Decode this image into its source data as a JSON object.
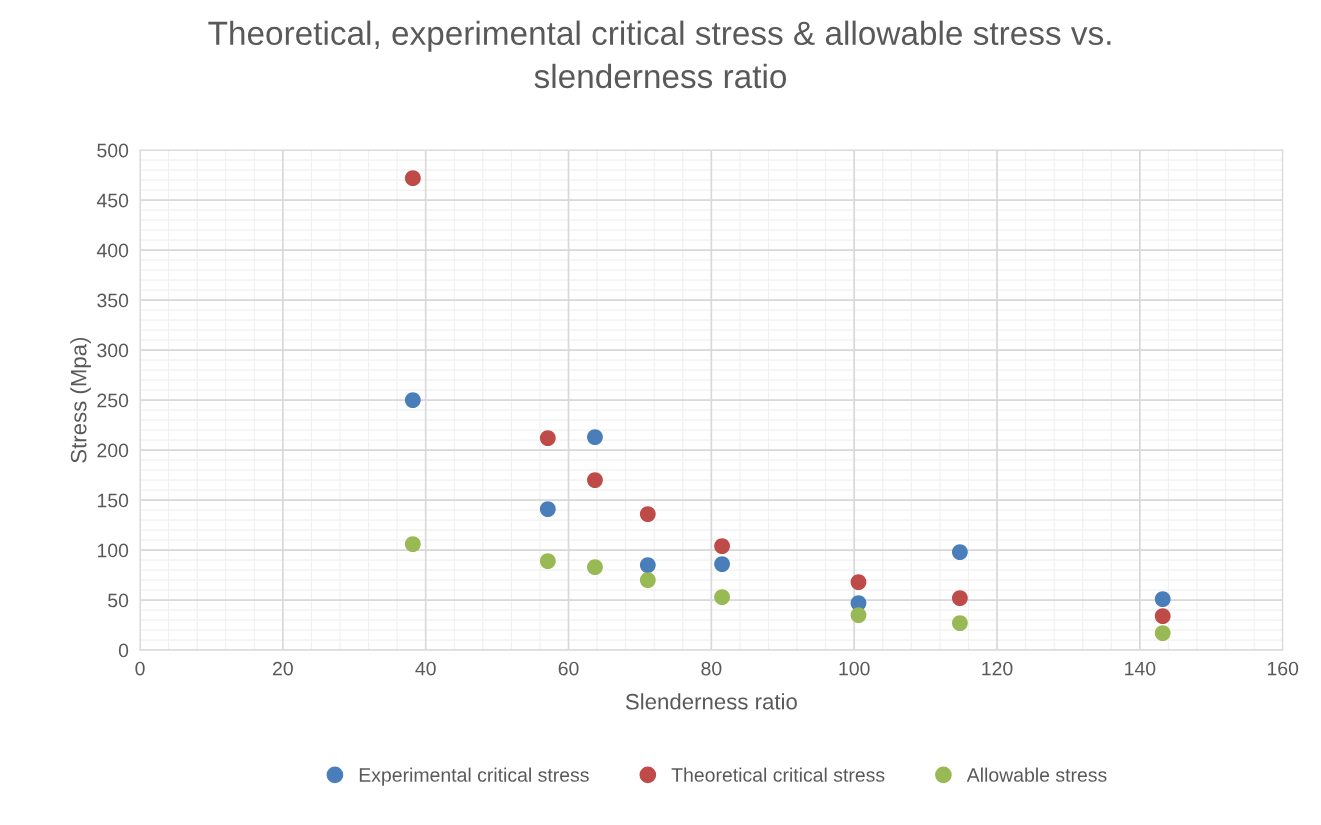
{
  "chart_data": {
    "type": "scatter",
    "title": "Theoretical, experimental critical stress & allowable stress vs.\nslenderness ratio",
    "xlabel": "Slenderness ratio",
    "ylabel": "Stress (Mpa)",
    "x": [
      38.2,
      57.1,
      63.7,
      71.1,
      81.5,
      100.6,
      114.8,
      143.2
    ],
    "series": [
      {
        "name": "Experimental critical stress",
        "color": "#4a7ebb",
        "values": [
          250,
          141,
          213,
          85,
          86,
          47,
          98,
          51
        ]
      },
      {
        "name": "Theoretical critical stress",
        "color": "#be4b48",
        "values": [
          472,
          212,
          170,
          136,
          104,
          68,
          52,
          34
        ]
      },
      {
        "name": "Allowable stress",
        "color": "#98b954",
        "values": [
          106,
          89,
          83,
          70,
          53,
          35,
          27,
          17
        ]
      }
    ],
    "xlim": [
      0,
      160
    ],
    "xticks": [
      0,
      20,
      40,
      60,
      80,
      100,
      120,
      140,
      160
    ],
    "ylim": [
      0,
      500
    ],
    "yticks": [
      0,
      50,
      100,
      150,
      200,
      250,
      300,
      350,
      400,
      450,
      500
    ],
    "grid": true,
    "legend": "bottom",
    "marker": "circle"
  }
}
